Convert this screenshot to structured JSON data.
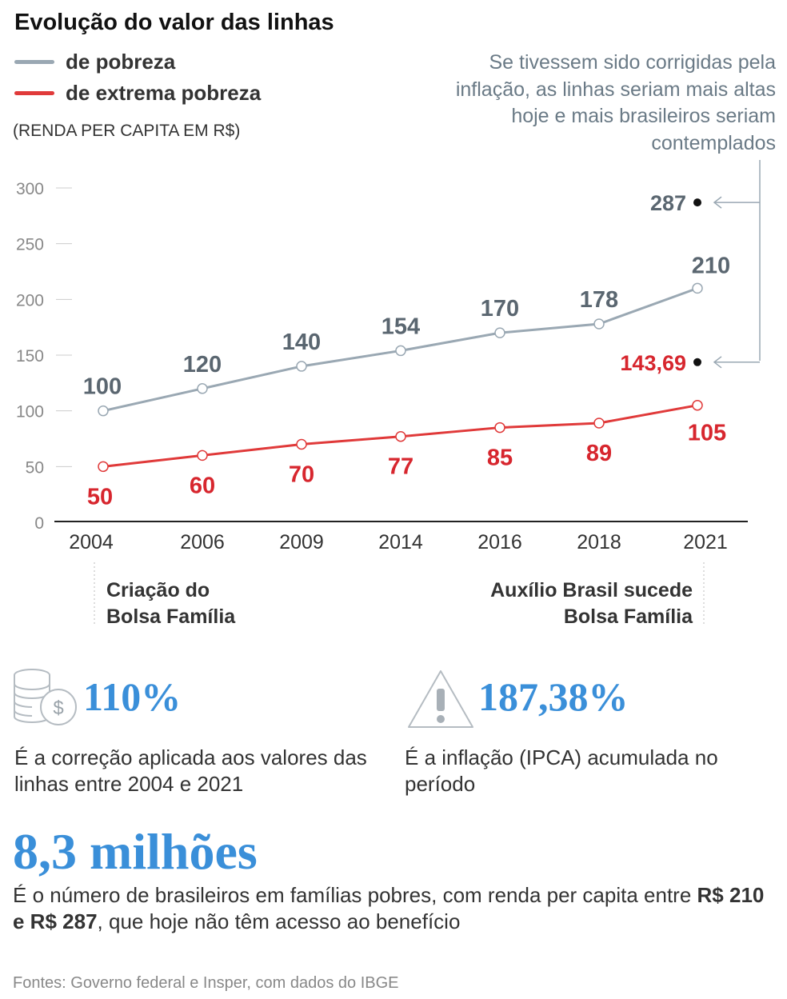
{
  "title": "Evolução do valor das linhas",
  "legend": [
    {
      "label": "de pobreza",
      "color": "#9aa8b3"
    },
    {
      "label": "de extrema pobreza",
      "color": "#e03a3a"
    }
  ],
  "unit": "(RENDA PER CAPITA EM R$)",
  "note": "Se tivessem sido corrigidas pela inflação, as linhas seriam mais altas hoje e mais brasileiros seriam contemplados",
  "chart_data": {
    "type": "line",
    "categories": [
      "2004",
      "2006",
      "2009",
      "2014",
      "2016",
      "2018",
      "2021"
    ],
    "series": [
      {
        "name": "de pobreza",
        "values": [
          100,
          120,
          140,
          154,
          170,
          178,
          210
        ],
        "labels": [
          "100",
          "120",
          "140",
          "154",
          "170",
          "178",
          "210"
        ],
        "color": "#9aa8b3",
        "label_color": "#5a6670"
      },
      {
        "name": "de extrema pobreza",
        "values": [
          50,
          60,
          70,
          77,
          85,
          89,
          105
        ],
        "labels": [
          "50",
          "60",
          "70",
          "77",
          "85",
          "89",
          "105"
        ],
        "color": "#e03a3a",
        "label_color": "#d7262e"
      }
    ],
    "corrected": [
      {
        "value": 287,
        "label": "287",
        "color": "#5a6670"
      },
      {
        "value": 143.69,
        "label": "143,69",
        "color": "#d7262e"
      }
    ],
    "ylim": [
      0,
      300
    ],
    "yticks": [
      0,
      50,
      100,
      150,
      200,
      250,
      300
    ],
    "grid": false
  },
  "events": [
    {
      "label": "Criação do Bolsa Família",
      "year": "2004",
      "lines": [
        "Criação do",
        "Bolsa Família"
      ]
    },
    {
      "label": "Auxílio Brasil sucede Bolsa Família",
      "year": "2021",
      "lines": [
        "Auxílio Brasil sucede",
        "Bolsa Família"
      ]
    }
  ],
  "stats": [
    {
      "icon": "coins-dollar-icon",
      "value": "110%",
      "desc": "É a correção aplicada aos valores das linhas entre 2004 e 2021"
    },
    {
      "icon": "warning-icon",
      "value": "187,38%",
      "desc": "É a inflação (IPCA) acumulada no período"
    }
  ],
  "highlight": {
    "value": "8,3 milhões",
    "desc_pre": "É o número de brasileiros em famílias pobres, com renda per capita entre ",
    "desc_bold": "R$ 210 e R$ 287",
    "desc_post": ", que hoje não têm acesso ao benefício"
  },
  "source": "Fontes: Governo federal e Insper, com dados do IBGE",
  "colors": {
    "accent": "#3a8fd9"
  }
}
